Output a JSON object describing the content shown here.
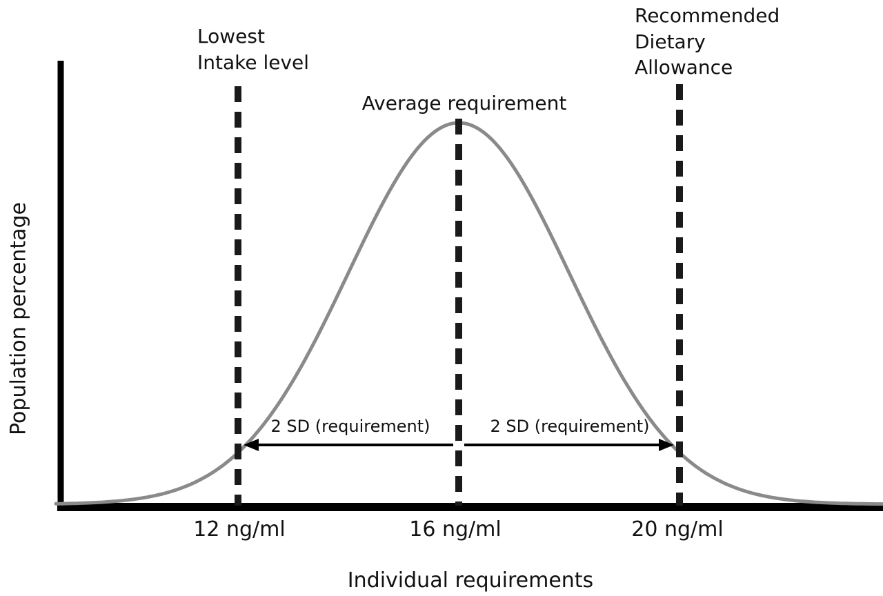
{
  "chart_data": {
    "type": "line",
    "title": "",
    "xlabel": "Individual requirements",
    "ylabel": "Population percentage",
    "curve": {
      "name": "normal-distribution-of-requirements",
      "shape": "gaussian",
      "mean": 16,
      "sd": 2,
      "x_range": [
        8.7,
        23.7
      ],
      "x_unit": "ng/ml",
      "peak_relative_height": 1
    },
    "x_ticks": [
      {
        "value": 12,
        "label": "12 ng/ml"
      },
      {
        "value": 16,
        "label": "16 ng/ml"
      },
      {
        "value": 20,
        "label": "20 ng/ml"
      }
    ],
    "markers": [
      {
        "value": 12,
        "label": "Lowest\nIntake level"
      },
      {
        "value": 16,
        "label": "Average requirement"
      },
      {
        "value": 20,
        "label": "Recommended\nDietary\nAllowance"
      }
    ],
    "sd_arrows": [
      {
        "from": 12,
        "to": 16,
        "label": "2 SD (requirement)",
        "head": "left"
      },
      {
        "from": 16,
        "to": 20,
        "label": "2 SD (requirement)",
        "head": "right"
      }
    ],
    "grid": false,
    "legend": "none",
    "colors": {
      "curve": "#8a8a8a",
      "axis": "#000000",
      "marker_line": "#1a1a1a",
      "text": "#111111"
    }
  }
}
